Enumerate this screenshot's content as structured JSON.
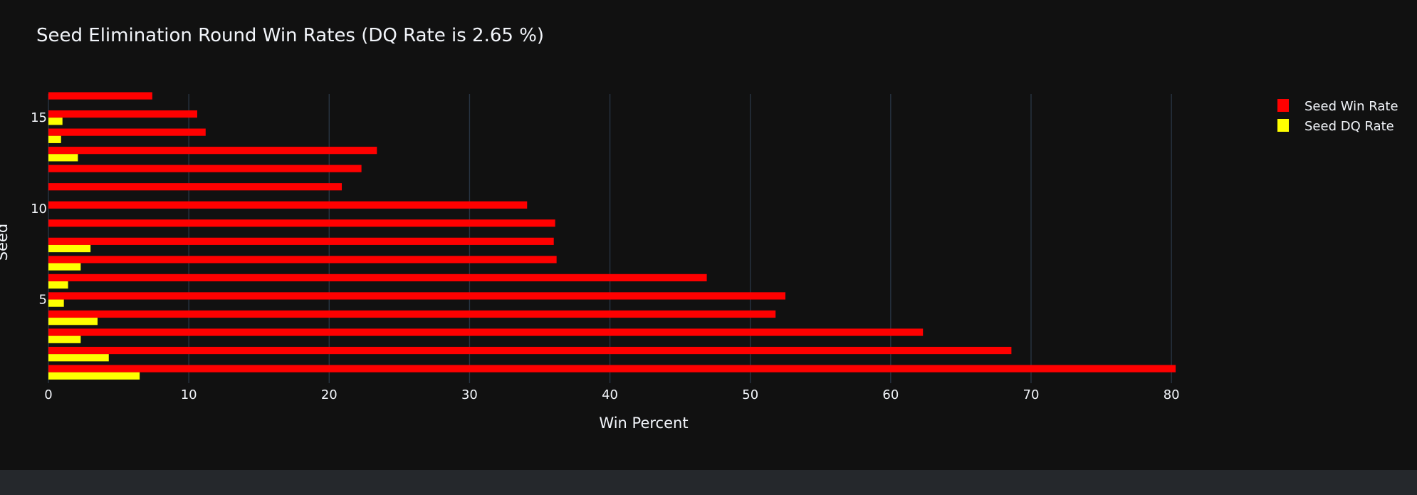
{
  "chart_data": {
    "type": "bar",
    "orientation": "horizontal",
    "barmode": "group",
    "title": "Seed Elimination Round Win Rates (DQ Rate is 2.65 %)",
    "xlabel": "Win Percent",
    "ylabel": "Seed",
    "xlim": [
      0,
      80.5
    ],
    "ylim": [
      0.4,
      16.3
    ],
    "x_ticks": [
      0,
      10,
      20,
      30,
      40,
      50,
      60,
      70,
      80
    ],
    "y_ticks": [
      5,
      10,
      15
    ],
    "grid": true,
    "legend_position": "top-right",
    "categories": [
      1,
      2,
      3,
      4,
      5,
      6,
      7,
      8,
      9,
      10,
      11,
      12,
      13,
      14,
      15,
      16
    ],
    "series": [
      {
        "name": "Seed Win Rate",
        "color": "#ff0000",
        "values": [
          80.3,
          68.6,
          62.3,
          51.8,
          52.5,
          46.9,
          36.2,
          36.0,
          36.1,
          34.1,
          20.9,
          22.3,
          23.4,
          11.2,
          10.6,
          7.4
        ]
      },
      {
        "name": "Seed DQ Rate",
        "color": "#ffff00",
        "values": [
          6.5,
          4.3,
          2.3,
          3.5,
          1.1,
          1.4,
          2.3,
          3.0,
          0,
          0,
          0,
          0,
          2.1,
          0.9,
          1.0,
          0
        ]
      }
    ]
  },
  "colors": {
    "background": "#111111",
    "grid": "#283442",
    "text": "#f2f5fa",
    "footer": "#25282c"
  }
}
